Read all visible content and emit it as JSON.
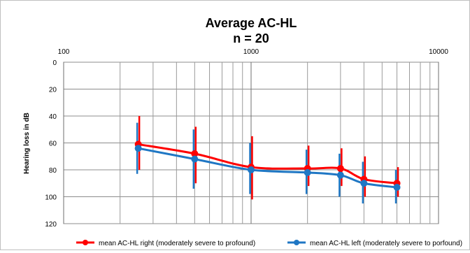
{
  "chart_data": {
    "type": "line",
    "title": "Average AC-HL",
    "subtitle": "n = 20",
    "xlabel": "",
    "ylabel": "Hearing loss in dB",
    "x_scale": "log",
    "x_position": "top",
    "y_inverted": true,
    "xlim": [
      100,
      10000
    ],
    "ylim": [
      0,
      120
    ],
    "x_tick_labels": [
      "100",
      "1000",
      "10000"
    ],
    "y_tick_labels": [
      "0",
      "20",
      "40",
      "60",
      "80",
      "100",
      "120"
    ],
    "grid": true,
    "legend_position": "bottom",
    "series": [
      {
        "name": "mean AC-HL right (moderately severe to profound)",
        "color": "#ff0000",
        "x": [
          250,
          500,
          1000,
          2000,
          3000,
          4000,
          6000
        ],
        "y": [
          61,
          68,
          78,
          79,
          79,
          87,
          90
        ],
        "err_low": [
          40,
          48,
          55,
          62,
          64,
          70,
          78
        ],
        "err_high": [
          80,
          90,
          102,
          92,
          92,
          100,
          100
        ]
      },
      {
        "name": "mean AC-HL left (moderately severe to porfound)",
        "color": "#1f77c4",
        "x": [
          250,
          500,
          1000,
          2000,
          3000,
          4000,
          6000
        ],
        "y": [
          64,
          72,
          80,
          82,
          84,
          90,
          93
        ],
        "err_low": [
          45,
          50,
          60,
          65,
          68,
          74,
          80
        ],
        "err_high": [
          83,
          94,
          98,
          98,
          100,
          105,
          105
        ]
      }
    ]
  }
}
